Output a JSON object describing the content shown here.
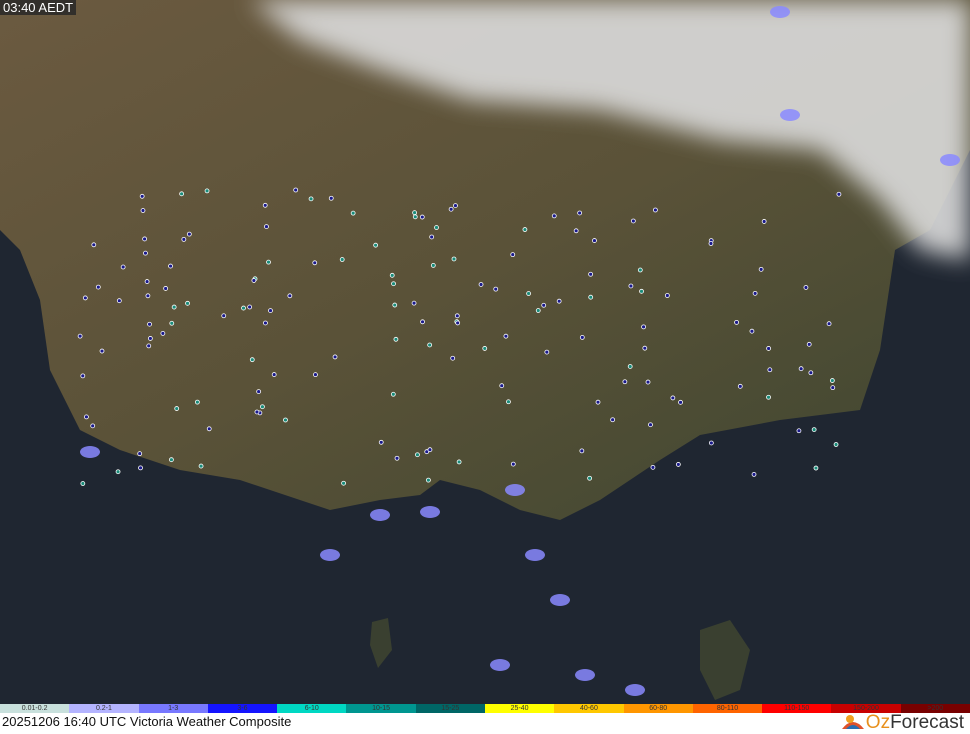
{
  "time_label": "03:40 AEDT",
  "caption": "20251206 16:40 UTC Victoria Weather Composite",
  "logo": {
    "prefix": "Oz",
    "suffix": "Forecast"
  },
  "legend": [
    {
      "label": "0.01-0.2",
      "color": "#c8e0dc"
    },
    {
      "label": "0.2-1",
      "color": "#b4b4ff"
    },
    {
      "label": "1-3",
      "color": "#7878ff"
    },
    {
      "label": "3-6",
      "color": "#1414ff"
    },
    {
      "label": "6-10",
      "color": "#00d8c3"
    },
    {
      "label": "10-15",
      "color": "#009690"
    },
    {
      "label": "15-25",
      "color": "#006666"
    },
    {
      "label": "25-40",
      "color": "#ffff00"
    },
    {
      "label": "40-60",
      "color": "#ffc800"
    },
    {
      "label": "60-80",
      "color": "#ff9600"
    },
    {
      "label": "80-110",
      "color": "#ff6400"
    },
    {
      "label": "110-150",
      "color": "#ff0000"
    },
    {
      "label": "150-200",
      "color": "#c80000"
    },
    {
      "label": ">200",
      "color": "#780000"
    }
  ]
}
